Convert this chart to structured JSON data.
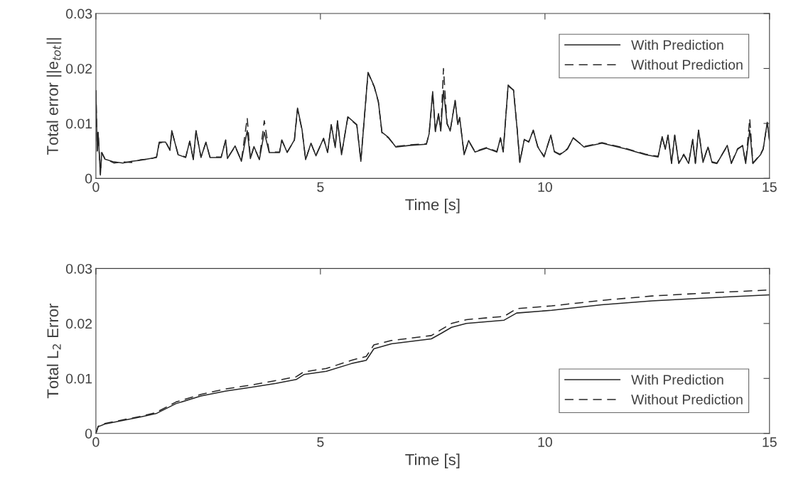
{
  "chart_data": [
    {
      "type": "line",
      "xlabel": "Time [s]",
      "ylabel": "Total error ||e$_{tot}$||",
      "xlim": [
        0,
        15
      ],
      "ylim": [
        0,
        0.03
      ],
      "xticks": [
        0,
        5,
        10,
        15
      ],
      "yticks": [
        0,
        0.01,
        0.02,
        0.03
      ],
      "legend": "top right",
      "grid": false,
      "x": [
        0,
        0.03,
        0.05,
        0.1,
        0.13,
        0.2,
        0.4,
        0.6,
        0.8,
        1.0,
        1.2,
        1.35,
        1.41,
        1.55,
        1.65,
        1.69,
        1.83,
        2.0,
        2.09,
        2.17,
        2.23,
        2.34,
        2.45,
        2.54,
        2.79,
        2.89,
        2.93,
        3.1,
        3.24,
        3.37,
        3.44,
        3.52,
        3.64,
        3.75,
        3.86,
        4.09,
        4.14,
        4.26,
        4.42,
        4.49,
        4.59,
        4.67,
        4.79,
        4.9,
        5.07,
        5.16,
        5.24,
        5.33,
        5.38,
        5.47,
        5.61,
        5.81,
        5.9,
        6.06,
        6.2,
        6.29,
        6.37,
        6.51,
        6.68,
        6.99,
        7.36,
        7.42,
        7.5,
        7.56,
        7.63,
        7.68,
        7.74,
        7.82,
        7.89,
        8.0,
        8.06,
        8.1,
        8.2,
        8.3,
        8.44,
        8.7,
        8.93,
        9.01,
        9.07,
        9.18,
        9.3,
        9.38,
        9.44,
        9.54,
        9.64,
        9.74,
        9.84,
        9.98,
        10.13,
        10.21,
        10.33,
        10.5,
        10.63,
        10.87,
        11.27,
        11.78,
        12.24,
        12.52,
        12.61,
        12.68,
        12.74,
        12.82,
        12.89,
        12.98,
        13.09,
        13.2,
        13.29,
        13.35,
        13.42,
        13.52,
        13.63,
        13.72,
        13.83,
        14.06,
        14.15,
        14.29,
        14.4,
        14.47,
        14.56,
        14.63,
        14.8,
        14.86,
        14.95,
        15.0
      ],
      "series": [
        {
          "name": "With Prediction",
          "color": "#262626",
          "line_style": "solid",
          "values": [
            0.016,
            0.005,
            0.0084,
            0.0006,
            0.0047,
            0.0035,
            0.003,
            0.0028,
            0.0031,
            0.0033,
            0.0036,
            0.0038,
            0.0066,
            0.0066,
            0.0052,
            0.0087,
            0.0043,
            0.0038,
            0.0068,
            0.0034,
            0.0087,
            0.0038,
            0.0066,
            0.0038,
            0.0038,
            0.007,
            0.0036,
            0.0059,
            0.0031,
            0.0087,
            0.0036,
            0.0058,
            0.0034,
            0.0084,
            0.0047,
            0.0047,
            0.007,
            0.0047,
            0.007,
            0.0128,
            0.0089,
            0.0034,
            0.0064,
            0.0041,
            0.0073,
            0.0047,
            0.0098,
            0.0056,
            0.0105,
            0.0043,
            0.0112,
            0.0098,
            0.0031,
            0.0193,
            0.0167,
            0.014,
            0.0084,
            0.0075,
            0.0057,
            0.006,
            0.0062,
            0.0081,
            0.0158,
            0.0086,
            0.0118,
            0.0086,
            0.016,
            0.01,
            0.0086,
            0.0142,
            0.0098,
            0.0111,
            0.0043,
            0.0069,
            0.0048,
            0.0055,
            0.0048,
            0.0074,
            0.0048,
            0.017,
            0.016,
            0.009,
            0.0029,
            0.0071,
            0.0066,
            0.0088,
            0.0057,
            0.0039,
            0.0079,
            0.0048,
            0.0043,
            0.0053,
            0.0074,
            0.0057,
            0.0064,
            0.0054,
            0.0043,
            0.0039,
            0.0076,
            0.0053,
            0.0079,
            0.0027,
            0.0079,
            0.0027,
            0.0043,
            0.0027,
            0.0071,
            0.0027,
            0.0088,
            0.0029,
            0.0057,
            0.0029,
            0.0027,
            0.006,
            0.0027,
            0.0053,
            0.006,
            0.0027,
            0.0088,
            0.0027,
            0.0043,
            0.0053,
            0.0102,
            0.0069
          ]
        },
        {
          "name": "Without Prediction",
          "color": "#262626",
          "line_style": "dashed",
          "values": [
            0.016,
            0.005,
            0.0084,
            0.0008,
            0.0047,
            0.0036,
            0.0028,
            0.003,
            0.0029,
            0.0034,
            0.0035,
            0.0039,
            0.0064,
            0.0067,
            0.0051,
            0.0086,
            0.0044,
            0.0039,
            0.0067,
            0.0035,
            0.0086,
            0.0039,
            0.0065,
            0.0039,
            0.0039,
            0.0069,
            0.0037,
            0.0058,
            0.0032,
            0.011,
            0.0037,
            0.0057,
            0.0035,
            0.0105,
            0.0048,
            0.0048,
            0.0069,
            0.0048,
            0.0069,
            0.0126,
            0.0088,
            0.0035,
            0.0063,
            0.0042,
            0.0072,
            0.0048,
            0.0097,
            0.0057,
            0.0104,
            0.0044,
            0.0111,
            0.0097,
            0.0032,
            0.0192,
            0.0166,
            0.0139,
            0.0083,
            0.0074,
            0.0058,
            0.0061,
            0.0063,
            0.008,
            0.0156,
            0.0085,
            0.0117,
            0.0087,
            0.02,
            0.0099,
            0.0087,
            0.0141,
            0.0097,
            0.011,
            0.0044,
            0.0068,
            0.0049,
            0.0056,
            0.0049,
            0.0073,
            0.0049,
            0.0168,
            0.0161,
            0.0091,
            0.003,
            0.007,
            0.0067,
            0.0087,
            0.0058,
            0.004,
            0.0078,
            0.0049,
            0.0044,
            0.0054,
            0.0073,
            0.0058,
            0.0065,
            0.0055,
            0.0044,
            0.004,
            0.0075,
            0.0054,
            0.0078,
            0.0028,
            0.0078,
            0.0028,
            0.0044,
            0.0028,
            0.007,
            0.0028,
            0.0087,
            0.003,
            0.0058,
            0.003,
            0.0028,
            0.0059,
            0.0028,
            0.0054,
            0.0059,
            0.0028,
            0.0109,
            0.0028,
            0.0044,
            0.0054,
            0.0101,
            0.007
          ]
        }
      ]
    },
    {
      "type": "line",
      "xlabel": "Time [s]",
      "ylabel": "Total L$_{2}$ Error",
      "xlim": [
        0,
        15
      ],
      "ylim": [
        0,
        0.03
      ],
      "xticks": [
        0,
        5,
        10,
        15
      ],
      "yticks": [
        0,
        0.01,
        0.02,
        0.03
      ],
      "legend": "bottom right",
      "grid": false,
      "x": [
        0,
        0.05,
        0.2,
        0.5,
        1.0,
        1.34,
        1.78,
        2.34,
        2.9,
        3.46,
        4.01,
        4.46,
        4.63,
        5.13,
        5.69,
        6.02,
        6.19,
        6.58,
        7.47,
        7.69,
        7.92,
        8.25,
        9.09,
        9.37,
        10.15,
        11.26,
        12.38,
        13.49,
        15.0
      ],
      "series": [
        {
          "name": "With Prediction",
          "color": "#262626",
          "line_style": "solid",
          "values": [
            0,
            0.0012,
            0.0017,
            0.0022,
            0.003,
            0.0036,
            0.0054,
            0.0068,
            0.0077,
            0.0084,
            0.0091,
            0.0098,
            0.0107,
            0.0113,
            0.0127,
            0.0133,
            0.0154,
            0.0163,
            0.0172,
            0.0182,
            0.0193,
            0.02,
            0.0206,
            0.0219,
            0.0224,
            0.0234,
            0.0241,
            0.0246,
            0.0252
          ]
        },
        {
          "name": "Without Prediction",
          "color": "#262626",
          "line_style": "dashed",
          "values": [
            0,
            0.0013,
            0.0018,
            0.0023,
            0.0031,
            0.0038,
            0.0057,
            0.0071,
            0.0081,
            0.0088,
            0.0096,
            0.0103,
            0.0112,
            0.0118,
            0.0133,
            0.014,
            0.0161,
            0.0169,
            0.0178,
            0.0189,
            0.02,
            0.0207,
            0.0213,
            0.0227,
            0.0232,
            0.0242,
            0.025,
            0.0255,
            0.0261
          ]
        }
      ]
    }
  ]
}
